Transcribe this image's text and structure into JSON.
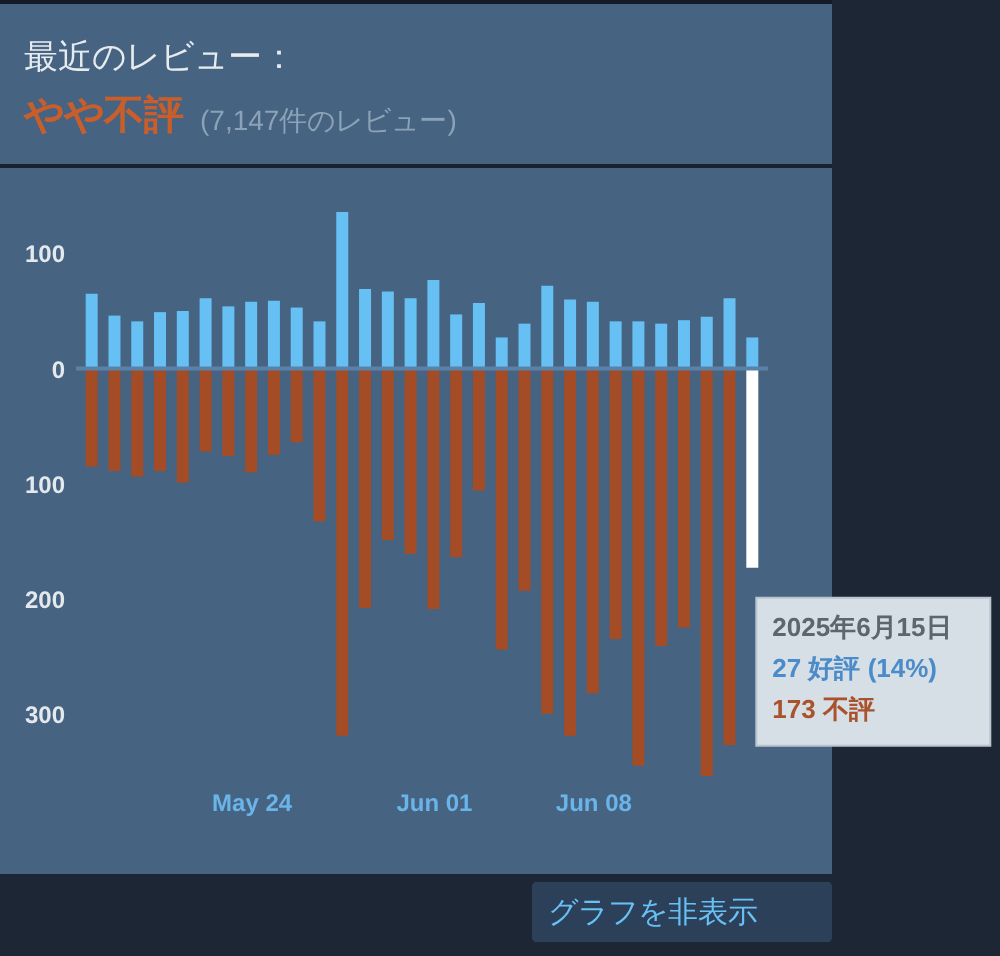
{
  "chart_data": {
    "type": "bar",
    "title": "最近のレビュー：",
    "subtitle": "やや不評",
    "annotations": [
      "(7,147件のレビュー)",
      "2025年6月15日",
      "27 好評 (14%)",
      "173 不評",
      "グラフを非表示"
    ],
    "x": [
      "2025-05-17",
      "2025-05-18",
      "2025-05-19",
      "2025-05-20",
      "2025-05-21",
      "2025-05-22",
      "2025-05-23",
      "2025-05-24",
      "2025-05-25",
      "2025-05-26",
      "2025-05-27",
      "2025-05-28",
      "2025-05-29",
      "2025-05-30",
      "2025-05-31",
      "2025-06-01",
      "2025-06-02",
      "2025-06-03",
      "2025-06-04",
      "2025-06-05",
      "2025-06-06",
      "2025-06-07",
      "2025-06-08",
      "2025-06-09",
      "2025-06-10",
      "2025-06-11",
      "2025-06-12",
      "2025-06-13",
      "2025-06-14",
      "2025-06-15"
    ],
    "stacked": true,
    "series": [
      {
        "color": "#66c0f4",
        "values": [
          65,
          46,
          41,
          49,
          50,
          61,
          54,
          58,
          59,
          53,
          41,
          136,
          69,
          67,
          61,
          77,
          47,
          57,
          27,
          39,
          72,
          60,
          58,
          41,
          41,
          39,
          42,
          45,
          61,
          27
        ]
      },
      {
        "colors": [
          "#a34c25",
          "#a34c25",
          "#a34c25",
          "#a34c25",
          "#a34c25",
          "#a34c25",
          "#a34c25",
          "#a34c25",
          "#a34c25",
          "#a34c25",
          "#a34c25",
          "#a34c25",
          "#a34c25",
          "#a34c25",
          "#a34c25",
          "#a34c25",
          "#a34c25",
          "#a34c25",
          "#a34c25",
          "#a34c25",
          "#a34c25",
          "#a34c25",
          "#a34c25",
          "#a34c25",
          "#a34c25",
          "#a34c25",
          "#a34c25",
          "#a34c25",
          "#a34c25",
          "#ffffff"
        ],
        "values": [
          -85,
          -89,
          -94,
          -89,
          -99,
          -72,
          -76,
          -90,
          -75,
          -64,
          -133,
          -319,
          -208,
          -149,
          -161,
          -209,
          -164,
          -106,
          -244,
          -193,
          -300,
          -319,
          -282,
          -235,
          -345,
          -241,
          -225,
          -354,
          -327,
          -173
        ]
      }
    ],
    "xlim": [
      "2025-05-16T18:00",
      "2025-06-15T06:00"
    ],
    "xticks": [
      {
        "value": "2025-05-24",
        "label": "May 24"
      },
      {
        "value": "2025-06-01",
        "label": "Jun 01"
      },
      {
        "value": "2025-06-08",
        "label": "Jun 08"
      }
    ],
    "ylim": [
      -354,
      136
    ],
    "yticks": [
      {
        "value": -300,
        "label": "300"
      },
      {
        "value": -200,
        "label": "200"
      },
      {
        "value": -100,
        "label": "100"
      },
      0,
      100
    ],
    "ref_lines": [
      {
        "axis": "y",
        "value": 0,
        "color": "#5a82a8"
      }
    ],
    "grid": false
  }
}
